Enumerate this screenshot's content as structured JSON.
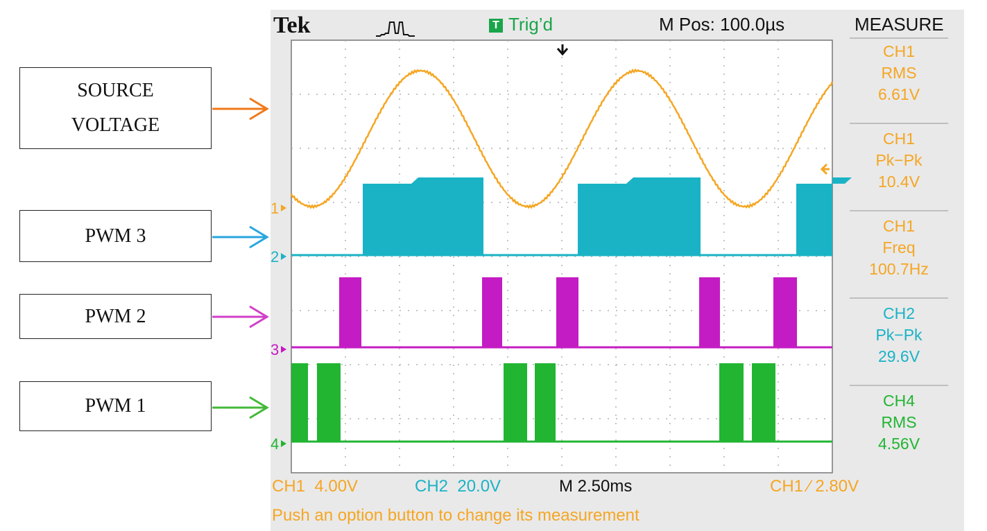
{
  "labels": {
    "source": [
      "SOURCE",
      "VOLTAGE"
    ],
    "pwm3": "PWM 3",
    "pwm2": "PWM 2",
    "pwm1": "PWM 1"
  },
  "scope": {
    "brand": "Tek",
    "trigger_status": "Trig’d",
    "trigger_icon": "T",
    "position": "M Pos: 100.0µs",
    "menu_title": "MEASURE",
    "measurements": [
      {
        "ch": "CH1",
        "type": "RMS",
        "value": "6.61V",
        "color": "#f5a623"
      },
      {
        "ch": "CH1",
        "type": "Pk−Pk",
        "value": "10.4V",
        "color": "#f5a623"
      },
      {
        "ch": "CH1",
        "type": "Freq",
        "value": "100.7Hz",
        "color": "#f5a623"
      },
      {
        "ch": "CH2",
        "type": "Pk−Pk",
        "value": "29.6V",
        "color": "#1ab3c6"
      },
      {
        "ch": "CH4",
        "type": "RMS",
        "value": "4.56V",
        "color": "#21b532"
      }
    ],
    "markers": [
      "1",
      "2",
      "3",
      "4"
    ],
    "ch1_scale": "CH1  4.00V",
    "ch2_scale": "CH2  20.0V",
    "timebase": "M 2.50ms",
    "trigger_setting": "CH1 ∕ 2.80V",
    "message": "Push an option button to change its measurement",
    "colors": {
      "ch1": "#f5a623",
      "ch2": "#1ab3c6",
      "ch3": "#c41cc4",
      "ch4": "#21b532"
    }
  }
}
